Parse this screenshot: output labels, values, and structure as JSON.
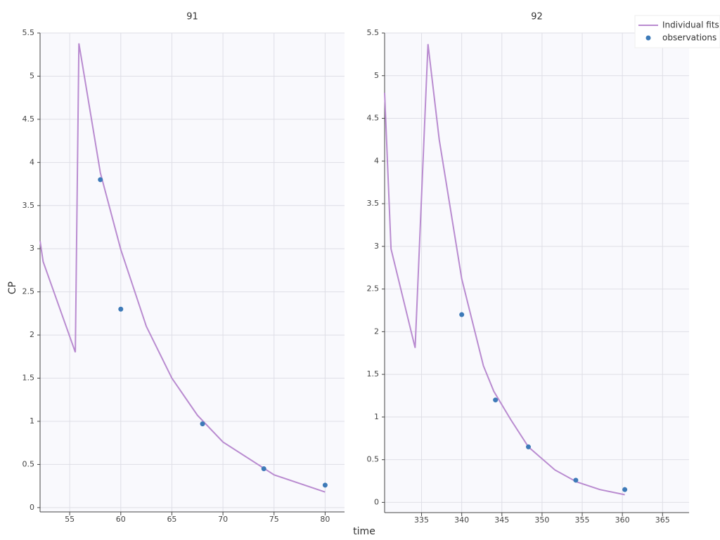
{
  "chart_data": [
    {
      "type": "line",
      "title": "91",
      "xlabel": "time",
      "ylabel": "CP",
      "xlim": [
        52.1,
        81.9
      ],
      "ylim": [
        -0.05,
        5.5
      ],
      "xticks": [
        55,
        60,
        65,
        70,
        75,
        80
      ],
      "yticks": [
        0,
        0.5,
        1,
        1.5,
        2,
        2.5,
        3,
        3.5,
        4,
        4.5,
        5,
        5.5
      ],
      "grid": true,
      "legend": "top-right",
      "series": [
        {
          "name": "Individual fits",
          "mode": "lines",
          "color": "#b98bd0",
          "x": [
            52.1,
            52.4,
            55.55,
            55.9,
            58,
            60,
            62.5,
            65,
            67.5,
            70,
            75,
            80
          ],
          "values": [
            3.09,
            2.85,
            1.8,
            5.38,
            3.88,
            2.99,
            2.1,
            1.5,
            1.07,
            0.76,
            0.38,
            0.18
          ]
        },
        {
          "name": "observations",
          "mode": "markers",
          "color": "#3d7ab8",
          "x": [
            58,
            60,
            68,
            74,
            80
          ],
          "values": [
            3.8,
            2.3,
            0.97,
            0.45,
            0.26
          ]
        }
      ]
    },
    {
      "type": "line",
      "title": "92",
      "xlim": [
        330.4,
        368.3
      ],
      "ylim": [
        -0.12,
        5.5
      ],
      "xticks": [
        335,
        340,
        345,
        350,
        355,
        360,
        365
      ],
      "yticks": [
        0,
        0.5,
        1,
        1.5,
        2,
        2.5,
        3,
        3.5,
        4,
        4.5,
        5,
        5.5
      ],
      "grid": true,
      "series": [
        {
          "mode": "lines",
          "color": "#b98bd0",
          "x": [
            330.4,
            331.2,
            334.2,
            335.8,
            337.2,
            340,
            342.7,
            344,
            346.1,
            348.3,
            351.6,
            354.3,
            357.2,
            360.3
          ],
          "values": [
            4.8,
            2.97,
            1.81,
            5.37,
            4.25,
            2.62,
            1.6,
            1.3,
            0.97,
            0.65,
            0.38,
            0.24,
            0.15,
            0.09
          ]
        },
        {
          "mode": "markers",
          "color": "#3d7ab8",
          "x": [
            340,
            344.2,
            348.3,
            354.2,
            360.3
          ],
          "values": [
            2.2,
            1.2,
            0.65,
            0.26,
            0.15
          ]
        }
      ]
    }
  ]
}
